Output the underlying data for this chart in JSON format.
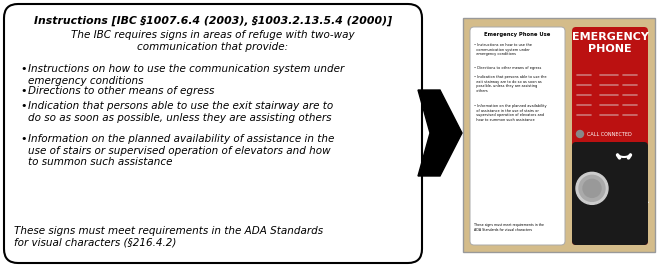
{
  "title_bold_italic": "Instructions [IBC §1007.6.4 (2003), §1003.2.13.5.4 (2000)]",
  "subtitle_italic": "The IBC requires signs in areas of refuge with two-way\ncommunication that provide:",
  "bullets": [
    "Instructions on how to use the communication system under\nemergency conditions",
    "Directions to other means of egress",
    "Indication that persons able to use the exit stairway are to\ndo so as soon as possible, unless they are assisting others",
    "Information on the planned availability of assistance in the\nuse of stairs or supervised operation of elevators and how\nto summon such assistance"
  ],
  "footer_italic": "These signs must meet requirements in the ADA Standards\nfor visual characters (§216.4.2)",
  "box_bg": "#ffffff",
  "box_border": "#000000",
  "fig_bg": "#ffffff",
  "arrow_color": "#000000",
  "panel_bg": "#d4bc8a",
  "sign_bg": "#ffffff",
  "emergency_bg": "#bb1111",
  "push_bg": "#1a1a1a",
  "call_text": "CALL CONNECTED",
  "sign_title": "Emergency Phone Use"
}
